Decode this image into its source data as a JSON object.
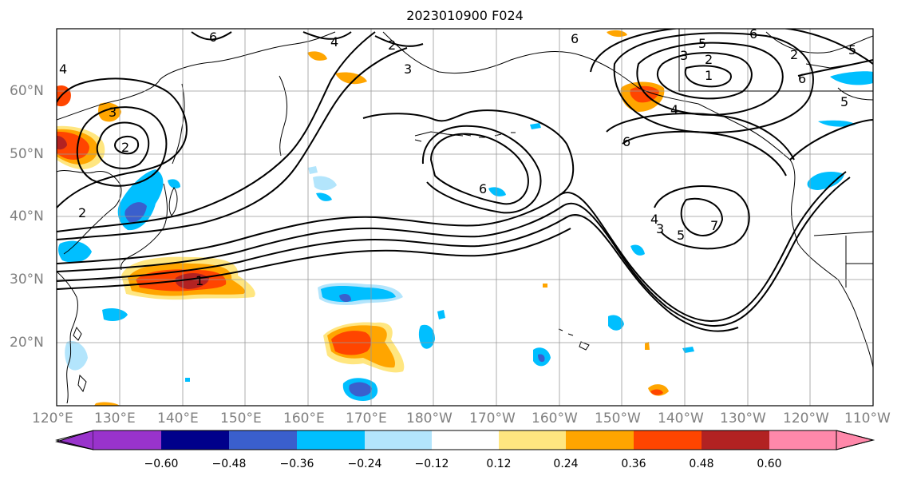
{
  "title": "2023010900 F024",
  "map": {
    "lon_labels": [
      "120°E",
      "130°E",
      "140°E",
      "150°E",
      "160°E",
      "170°E",
      "180°W",
      "170°W",
      "160°W",
      "150°W",
      "140°W",
      "130°W",
      "120°W",
      "110°W"
    ],
    "lat_labels": [
      "60°N",
      "50°N",
      "40°N",
      "30°N",
      "20°N"
    ],
    "contour_labels": [
      "6",
      "4",
      "3",
      "2",
      "1",
      "5",
      "7"
    ]
  },
  "colorbar": {
    "ticks": [
      "−0.60",
      "−0.48",
      "−0.36",
      "−0.24",
      "−0.12",
      "0.12",
      "0.24",
      "0.36",
      "0.48",
      "0.60"
    ],
    "colors": [
      "#9933cc",
      "#00008b",
      "#3a5fcd",
      "#00bfff",
      "#b3e5fc",
      "#ffffff",
      "#ffe680",
      "#ffa500",
      "#ff4500",
      "#b22222",
      "#ff88aa"
    ]
  }
}
